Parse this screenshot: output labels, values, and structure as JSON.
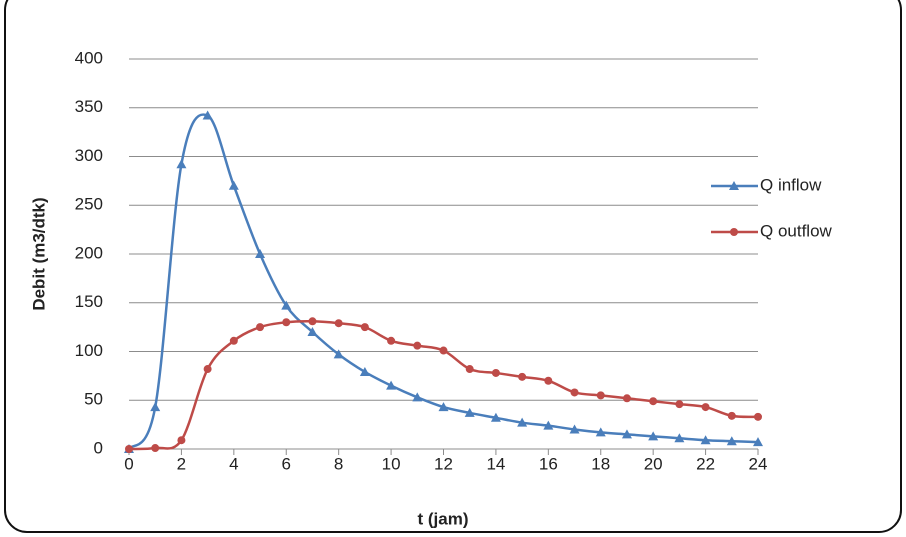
{
  "chart_data": {
    "type": "line",
    "x": [
      0,
      1,
      2,
      3,
      4,
      5,
      6,
      7,
      8,
      9,
      10,
      11,
      12,
      13,
      14,
      15,
      16,
      17,
      18,
      19,
      20,
      21,
      22,
      23,
      24
    ],
    "series": [
      {
        "name": "Q inflow",
        "color": "#4a7ebb",
        "marker": "triangle",
        "values": [
          0,
          43,
          292,
          342,
          270,
          200,
          147,
          120,
          97,
          79,
          65,
          53,
          43,
          37,
          32,
          27,
          24,
          20,
          17,
          15,
          13,
          11,
          9,
          8,
          7
        ]
      },
      {
        "name": "Q outflow",
        "color": "#be4b48",
        "marker": "circle",
        "values": [
          0,
          1,
          9,
          82,
          111,
          125,
          130,
          131,
          129,
          125,
          111,
          106,
          101,
          82,
          78,
          74,
          70,
          58,
          55,
          52,
          49,
          46,
          43,
          34,
          33
        ]
      }
    ],
    "xlabel": "t (jam)",
    "ylabel": "Debit (m3/dtk)",
    "xlim": [
      0,
      24
    ],
    "xticks": [
      0,
      2,
      4,
      6,
      8,
      10,
      12,
      14,
      16,
      18,
      20,
      22,
      24
    ],
    "ylim": [
      0,
      400
    ],
    "yticks": [
      0,
      50,
      100,
      150,
      200,
      250,
      300,
      350,
      400
    ],
    "grid": true,
    "smooth": true,
    "legend": "right"
  }
}
